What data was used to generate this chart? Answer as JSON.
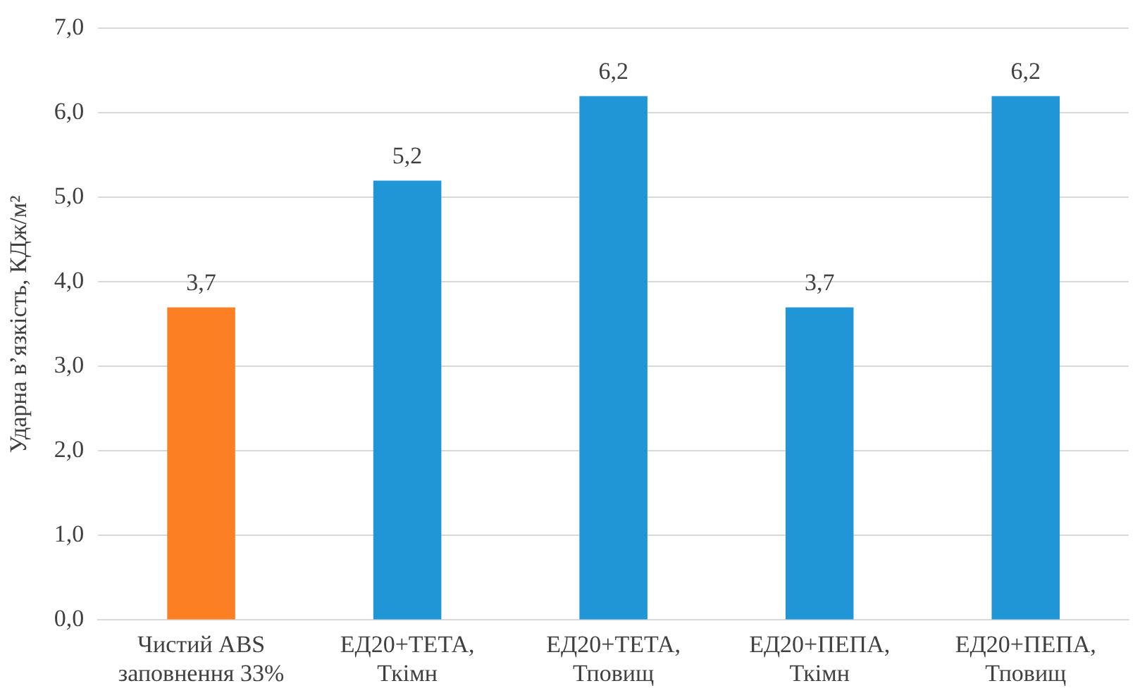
{
  "chart_data": {
    "type": "bar",
    "ylabel": "Ударна в’язкість, КДж/м²",
    "categories": [
      "Чистий ABS заповнення 33%",
      "ЕД20+ТЕТА, Ткімн",
      "ЕД20+ТЕТА, Тповищ",
      "ЕД20+ПЕПА, Ткімн",
      "ЕД20+ПЕПА, Тповищ"
    ],
    "values": [
      3.7,
      5.2,
      6.2,
      3.7,
      6.2
    ],
    "colors": [
      "#fd7f23",
      "#2196d6",
      "#2196d6",
      "#2196d6",
      "#2196d6"
    ],
    "value_labels": [
      "3,7",
      "5,2",
      "6,2",
      "3,7",
      "6,2"
    ],
    "ylim": [
      0,
      7
    ],
    "yticks": [
      {
        "value": 0,
        "label": "0,0"
      },
      {
        "value": 1,
        "label": "1,0"
      },
      {
        "value": 2,
        "label": "2,0"
      },
      {
        "value": 3,
        "label": "3,0"
      },
      {
        "value": 4,
        "label": "4,0"
      },
      {
        "value": 5,
        "label": "5,0"
      },
      {
        "value": 6,
        "label": "6,0"
      },
      {
        "value": 7,
        "label": "7,0"
      }
    ],
    "grid": "y"
  }
}
